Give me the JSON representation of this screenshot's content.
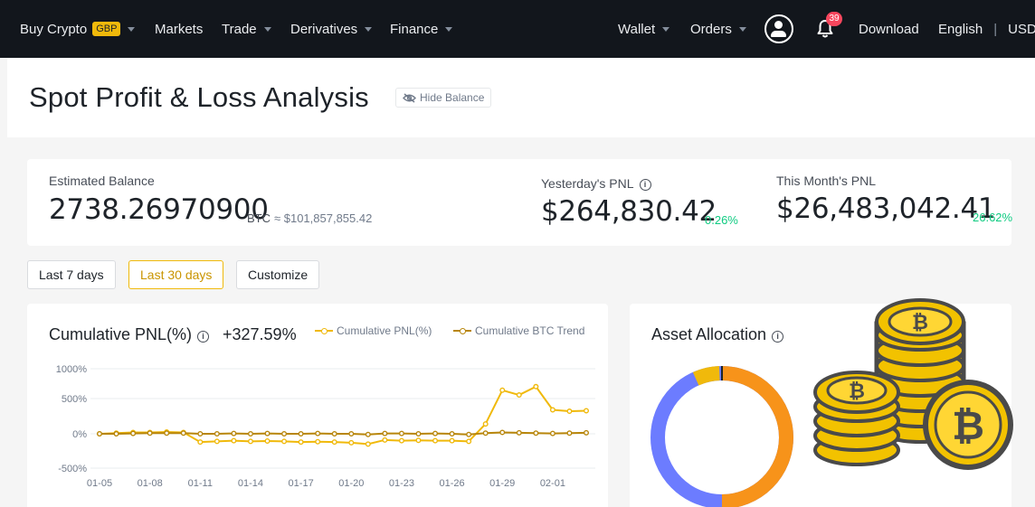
{
  "nav": {
    "buy_crypto": "Buy Crypto",
    "currency_badge": "GBP",
    "markets": "Markets",
    "trade": "Trade",
    "derivatives": "Derivatives",
    "finance": "Finance",
    "wallet": "Wallet",
    "orders": "Orders",
    "notification_count": "39",
    "download": "Download",
    "language": "English",
    "separator": "|",
    "fiat": "USD"
  },
  "page": {
    "title": "Spot Profit & Loss Analysis",
    "hide_balance": "Hide Balance"
  },
  "balance": {
    "estimated_label": "Estimated Balance",
    "estimated_value": "2738.26970900",
    "estimated_unit": "BTC",
    "estimated_fiat": "≈ $101,857,855.42",
    "yesterday_label": "Yesterday's PNL",
    "yesterday_value": "$264,830.42",
    "yesterday_pct": "0.26%",
    "month_label": "This Month's PNL",
    "month_value": "$26,483,042.41",
    "month_pct": "26.62%"
  },
  "ranges": {
    "last7": "Last 7 days",
    "last30": "Last 30 days",
    "customize": "Customize",
    "selected": "Last 30 days"
  },
  "pnl_chart": {
    "title": "Cumulative PNL(%)",
    "value": "+327.59%"
  },
  "asset_allocation": {
    "title": "Asset Allocation"
  },
  "colors": {
    "accent": "#f0b90b",
    "positive": "#0ecb81",
    "negative": "#f6465d",
    "btc_trend": "#b8860b",
    "donut_orange": "#f7931a",
    "donut_blue": "#6c7cff",
    "donut_yellow": "#f0b90b"
  },
  "icons": {
    "coins_overlay": "bitcoin-coin-stack-icon"
  },
  "chart_data": {
    "type": "line",
    "title": "Cumulative PNL(%)",
    "xlabel": "",
    "ylabel": "",
    "x_tick_labels": [
      "01-05",
      "01-08",
      "01-11",
      "01-14",
      "01-17",
      "01-20",
      "01-23",
      "01-26",
      "01-29",
      "02-01"
    ],
    "y_tick_labels": [
      "1000%",
      "500%",
      "0%",
      "-500%"
    ],
    "ylim": [
      -500,
      1000
    ],
    "grid": true,
    "legend_position": "top-right",
    "x": [
      "01-05",
      "01-06",
      "01-07",
      "01-08",
      "01-09",
      "01-10",
      "01-11",
      "01-12",
      "01-13",
      "01-14",
      "01-15",
      "01-16",
      "01-17",
      "01-18",
      "01-19",
      "01-20",
      "01-21",
      "01-22",
      "01-23",
      "01-24",
      "01-25",
      "01-26",
      "01-27",
      "01-28",
      "01-29",
      "01-30",
      "01-31",
      "02-01",
      "02-02",
      "02-03"
    ],
    "series": [
      {
        "name": "Cumulative PNL(%)",
        "color": "#f0b90b",
        "values": [
          0,
          10,
          20,
          20,
          25,
          20,
          -120,
          -110,
          -100,
          -110,
          -105,
          -110,
          -120,
          -115,
          -120,
          -130,
          -150,
          -90,
          -100,
          -95,
          -100,
          -100,
          -110,
          140,
          640,
          560,
          700,
          340,
          320,
          327.59
        ]
      },
      {
        "name": "Cumulative BTC Trend",
        "color": "#b8860b",
        "values": [
          0,
          0,
          5,
          10,
          10,
          10,
          0,
          0,
          5,
          0,
          5,
          0,
          0,
          5,
          0,
          0,
          -10,
          5,
          5,
          0,
          5,
          0,
          -10,
          10,
          20,
          15,
          10,
          5,
          10,
          15
        ]
      }
    ]
  }
}
